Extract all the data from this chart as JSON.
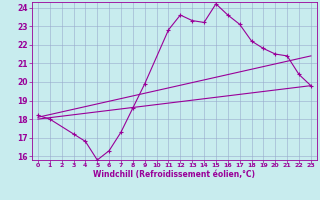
{
  "xlabel": "Windchill (Refroidissement éolien,°C)",
  "bg_color": "#c8ecee",
  "line_color": "#990099",
  "grid_color": "#99aacc",
  "xmin": 0,
  "xmax": 23,
  "ymin": 16,
  "ymax": 24,
  "yticks": [
    16,
    17,
    18,
    19,
    20,
    21,
    22,
    23,
    24
  ],
  "xticks": [
    0,
    1,
    2,
    3,
    4,
    5,
    6,
    7,
    8,
    9,
    10,
    11,
    12,
    13,
    14,
    15,
    16,
    17,
    18,
    19,
    20,
    21,
    22,
    23
  ],
  "line1_x": [
    0,
    1,
    3,
    4,
    5,
    6,
    7,
    8,
    9,
    11,
    12,
    13,
    14,
    15,
    16,
    17,
    18,
    19,
    20,
    21,
    22,
    23
  ],
  "line1_y": [
    18.2,
    18.0,
    17.2,
    16.8,
    15.8,
    16.3,
    17.3,
    18.6,
    19.9,
    22.8,
    23.6,
    23.3,
    23.2,
    24.2,
    23.6,
    23.1,
    22.2,
    21.8,
    21.5,
    21.4,
    20.4,
    19.8
  ],
  "line2_x": [
    0,
    23
  ],
  "line2_y": [
    18.0,
    19.8
  ],
  "line3_x": [
    0,
    23
  ],
  "line3_y": [
    18.1,
    21.4
  ]
}
